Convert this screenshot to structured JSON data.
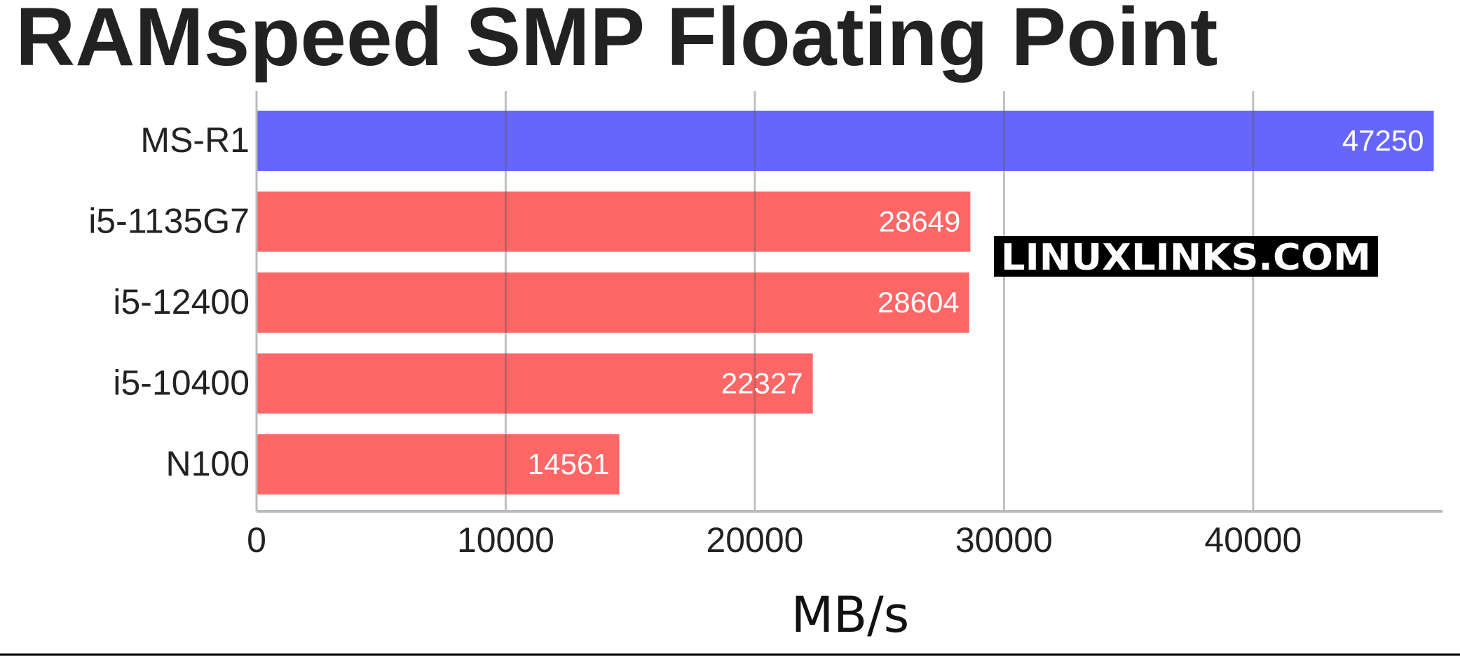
{
  "chart_data": {
    "type": "bar",
    "orientation": "horizontal",
    "title": "RAMspeed SMP Floating Point",
    "xlabel": "MB/s",
    "ylabel": "",
    "categories": [
      "MS-R1",
      "i5-1135G7",
      "i5-12400",
      "i5-10400",
      "N100"
    ],
    "values": [
      47250,
      28649,
      28604,
      22327,
      14561
    ],
    "bar_colors": [
      "#6666ff",
      "#ff6666",
      "#ff6666",
      "#ff6666",
      "#ff6666"
    ],
    "xlim": [
      0,
      47600
    ],
    "xticks": [
      0,
      10000,
      20000,
      30000,
      40000
    ],
    "xtick_labels": [
      "0",
      "10000",
      "20000",
      "30000",
      "40000"
    ],
    "grid": true,
    "data_labels": true,
    "watermark": "LINUXLINKS.COM"
  }
}
